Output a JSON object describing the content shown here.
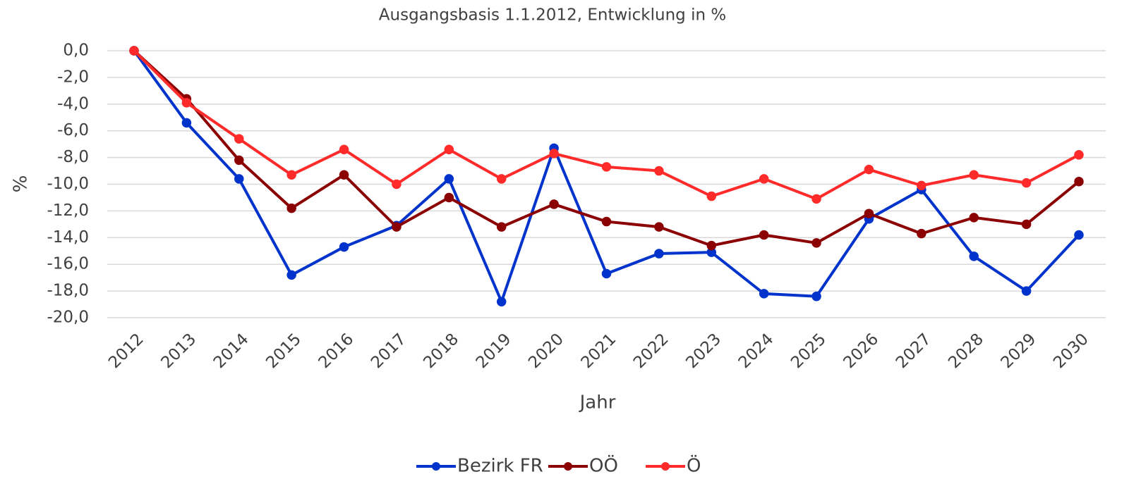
{
  "chart_data": {
    "type": "line",
    "title": "Ausgangsbasis 1.1.2012, Entwicklung in %",
    "x_label": "Jahr",
    "y_label": "%",
    "categories": [
      "2012",
      "2013",
      "2014",
      "2015",
      "2016",
      "2017",
      "2018",
      "2019",
      "2020",
      "2021",
      "2022",
      "2023",
      "2024",
      "2025",
      "2026",
      "2027",
      "2028",
      "2029",
      "2030"
    ],
    "series": [
      {
        "name": "Bezirk FR",
        "color": "#0033cc",
        "values": [
          0,
          -5.4,
          -9.6,
          -16.8,
          -14.7,
          -13.1,
          -9.6,
          -18.8,
          -7.3,
          -16.7,
          -15.2,
          -15.1,
          -18.2,
          -18.4,
          -12.6,
          -10.4,
          -15.4,
          -18.0,
          -13.8
        ]
      },
      {
        "name": "OÖ",
        "color": "#8b0000",
        "values": [
          0,
          -3.6,
          -8.2,
          -11.8,
          -9.3,
          -13.2,
          -11.0,
          -13.2,
          -11.5,
          -12.8,
          -13.2,
          -14.6,
          -13.8,
          -14.4,
          -12.2,
          -13.7,
          -12.5,
          -13.0,
          -9.8
        ]
      },
      {
        "name": "Ö",
        "color": "#ff2a2a",
        "values": [
          0,
          -3.9,
          -6.6,
          -9.3,
          -7.4,
          -10.0,
          -7.4,
          -9.6,
          -7.7,
          -8.7,
          -9.0,
          -10.9,
          -9.6,
          -11.1,
          -8.9,
          -10.1,
          -9.3,
          -9.9,
          -7.8
        ]
      }
    ],
    "ylim": [
      -20,
      0
    ],
    "yticks": [
      {
        "value": 0,
        "label": "0,0"
      },
      {
        "value": -2,
        "label": "-2,0"
      },
      {
        "value": -4,
        "label": "-4,0"
      },
      {
        "value": -6,
        "label": "-6,0"
      },
      {
        "value": -8,
        "label": "-8,0"
      },
      {
        "value": -10,
        "label": "-10,0"
      },
      {
        "value": -12,
        "label": "-12,0"
      },
      {
        "value": -14,
        "label": "-14,0"
      },
      {
        "value": -16,
        "label": "-16,0"
      },
      {
        "value": -18,
        "label": "-18,0"
      },
      {
        "value": -20,
        "label": "-20,0"
      }
    ],
    "grid": true,
    "legend": "bottom"
  }
}
